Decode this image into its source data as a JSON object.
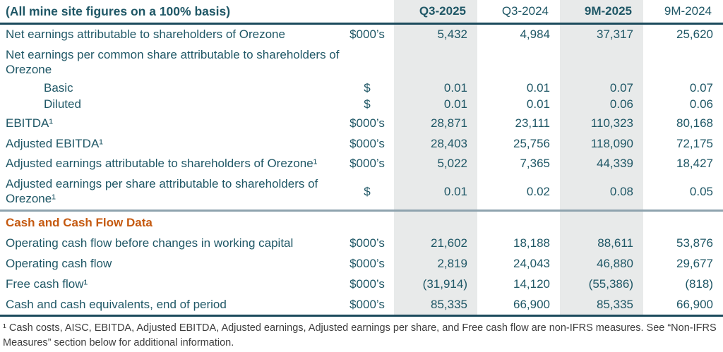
{
  "colors": {
    "teal": "#1F5766",
    "orange": "#C55A11",
    "shade": "#E8EAEA",
    "rule_dark": "#1B4A5C",
    "rule_gray": "#8EA3AE",
    "footnote_text": "#3D3D3D"
  },
  "table": {
    "title": "(All mine site figures on a 100% basis)",
    "columns": [
      {
        "label": "Q3-2025",
        "bold": true,
        "shaded": true
      },
      {
        "label": "Q3-2024",
        "bold": false,
        "shaded": false
      },
      {
        "label": "9M-2025",
        "bold": true,
        "shaded": true
      },
      {
        "label": "9M-2024",
        "bold": false,
        "shaded": false
      }
    ],
    "rows": [
      {
        "label": "Net earnings attributable to shareholders of Orezone",
        "unit": "$000’s",
        "values": [
          "5,432",
          "4,984",
          "37,317",
          "25,620"
        ]
      },
      {
        "label": "Net earnings per common share attributable to shareholders of Orezone",
        "unit": "",
        "values": [
          "",
          "",
          "",
          ""
        ]
      },
      {
        "label": "Basic",
        "indent": true,
        "unit": "$",
        "values": [
          "0.01",
          "0.01",
          "0.07",
          "0.07"
        ]
      },
      {
        "label": "Diluted",
        "indent": true,
        "unit": "$",
        "values": [
          "0.01",
          "0.01",
          "0.06",
          "0.06"
        ]
      },
      {
        "label": "EBITDA¹",
        "unit": "$000’s",
        "values": [
          "28,871",
          "23,111",
          "110,323",
          "80,168"
        ]
      },
      {
        "label": "Adjusted EBITDA¹",
        "unit": "$000’s",
        "values": [
          "28,403",
          "25,756",
          "118,090",
          "72,175"
        ]
      },
      {
        "label": "Adjusted earnings attributable to shareholders of Orezone¹",
        "unit": "$000’s",
        "values": [
          "5,022",
          "7,365",
          "44,339",
          "18,427"
        ]
      },
      {
        "label": "Adjusted earnings per share attributable to shareholders of Orezone¹",
        "unit": "$",
        "values": [
          "0.01",
          "0.02",
          "0.08",
          "0.05"
        ]
      },
      {
        "label": "Cash and Cash Flow Data",
        "section": true,
        "unit": "",
        "values": [
          "",
          "",
          "",
          ""
        ]
      },
      {
        "label": "Operating cash flow before changes in working capital",
        "unit": "$000’s",
        "values": [
          "21,602",
          "18,188",
          "88,611",
          "53,876"
        ]
      },
      {
        "label": "Operating cash flow",
        "unit": "$000’s",
        "values": [
          "2,819",
          "24,043",
          "46,880",
          "29,677"
        ]
      },
      {
        "label": "Free cash flow¹",
        "unit": "$000’s",
        "values": [
          "(31,914)",
          "14,120",
          "(55,386)",
          "(818)"
        ]
      },
      {
        "label": "Cash and cash equivalents, end of period",
        "unit": "$000’s",
        "values": [
          "85,335",
          "66,900",
          "85,335",
          "66,900"
        ]
      }
    ],
    "footnote": "¹ Cash costs, AISC, EBITDA, Adjusted EBITDA, Adjusted earnings, Adjusted earnings per share, and Free cash flow are non-IFRS measures.  See “Non-IFRS Measures” section below for additional information."
  }
}
